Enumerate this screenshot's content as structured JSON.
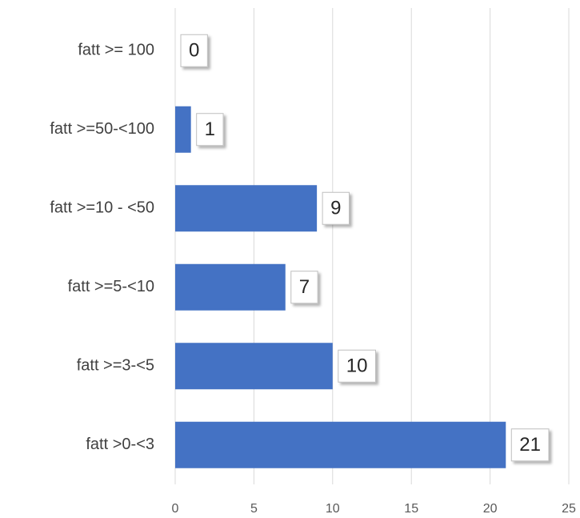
{
  "chart_data": {
    "type": "bar",
    "orientation": "horizontal",
    "categories": [
      "fatt >= 100",
      "fatt >=50-<100",
      "fatt >=10 - <50",
      "fatt >=5-<10",
      "fatt >=3-<5",
      "fatt >0-<3"
    ],
    "values": [
      0,
      1,
      9,
      7,
      10,
      21
    ],
    "color": "#4472c4",
    "xlim": [
      0,
      25
    ],
    "xticks": [
      0,
      5,
      10,
      15,
      20,
      25
    ],
    "grid": true
  }
}
